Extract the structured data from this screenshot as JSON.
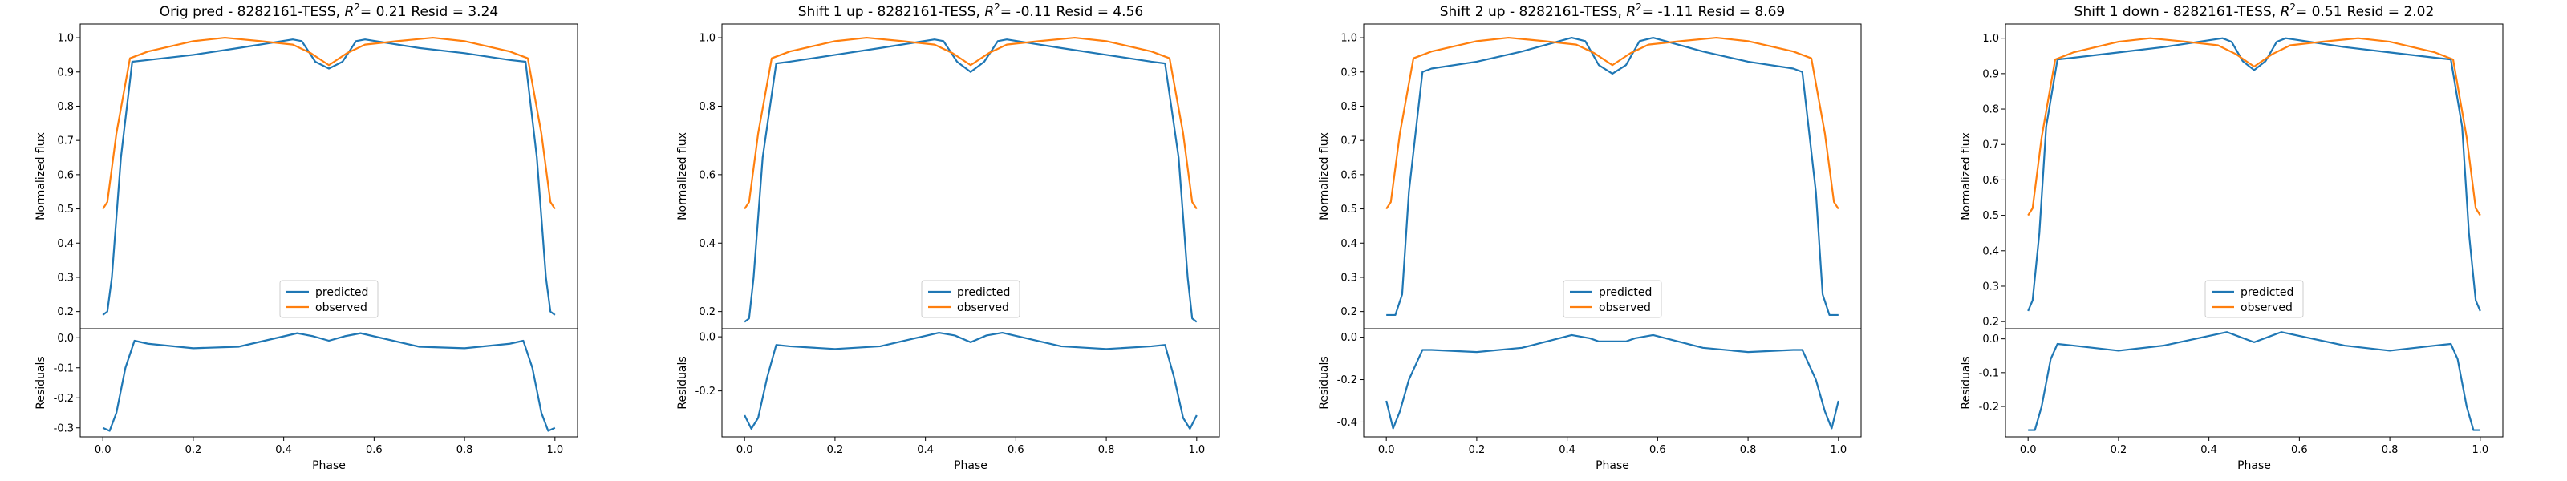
{
  "figure": {
    "colors": {
      "predicted": "#1f77b4",
      "observed": "#ff7f0e",
      "axes": "#000000",
      "background": "#ffffff"
    }
  },
  "chart_data": [
    {
      "type": "line",
      "title_prefix": "Orig pred - 8282161-TESS, ",
      "title_r2": "= 0.21",
      "title_resid": "Resid = 3.24",
      "ylabel": "Normalized flux",
      "ylabel_resid": "Residuals",
      "xlabel": "Phase",
      "xlim": [
        -0.05,
        1.05
      ],
      "ylim": [
        0.15,
        1.04
      ],
      "ylim_resid": [
        -0.33,
        0.03
      ],
      "yticks": [
        "0.2",
        "0.3",
        "0.4",
        "0.5",
        "0.6",
        "0.7",
        "0.8",
        "0.9",
        "1.0"
      ],
      "yticks_resid": [
        "-0.3",
        "-0.2",
        "-0.1",
        "0.0"
      ],
      "xticks": [
        "0.0",
        "0.2",
        "0.4",
        "0.6",
        "0.8",
        "1.0"
      ],
      "legend": {
        "location": "lower-center",
        "entries": [
          "predicted",
          "observed"
        ]
      },
      "series": [
        {
          "name": "predicted",
          "x": [
            0,
            0.01,
            0.02,
            0.04,
            0.065,
            0.1,
            0.2,
            0.3,
            0.42,
            0.44,
            0.47,
            0.5,
            0.53,
            0.56,
            0.58,
            0.7,
            0.8,
            0.9,
            0.935,
            0.96,
            0.98,
            0.99,
            1.0
          ],
          "y": [
            0.19,
            0.2,
            0.3,
            0.65,
            0.93,
            0.935,
            0.95,
            0.97,
            0.995,
            0.99,
            0.93,
            0.91,
            0.93,
            0.99,
            0.995,
            0.97,
            0.955,
            0.935,
            0.93,
            0.65,
            0.3,
            0.2,
            0.19
          ]
        },
        {
          "name": "observed",
          "x": [
            0,
            0.01,
            0.03,
            0.06,
            0.1,
            0.2,
            0.27,
            0.35,
            0.42,
            0.46,
            0.5,
            0.54,
            0.58,
            0.65,
            0.73,
            0.8,
            0.9,
            0.94,
            0.97,
            0.99,
            1.0
          ],
          "y": [
            0.5,
            0.52,
            0.72,
            0.94,
            0.96,
            0.99,
            1.0,
            0.99,
            0.98,
            0.955,
            0.92,
            0.955,
            0.98,
            0.99,
            1.0,
            0.99,
            0.96,
            0.94,
            0.72,
            0.52,
            0.5
          ]
        }
      ],
      "residuals": {
        "x": [
          0,
          0.015,
          0.03,
          0.05,
          0.07,
          0.1,
          0.2,
          0.3,
          0.43,
          0.465,
          0.5,
          0.535,
          0.57,
          0.7,
          0.8,
          0.9,
          0.93,
          0.95,
          0.97,
          0.985,
          1.0
        ],
        "y": [
          -0.3,
          -0.31,
          -0.25,
          -0.1,
          -0.01,
          -0.02,
          -0.035,
          -0.03,
          0.015,
          0.005,
          -0.01,
          0.005,
          0.015,
          -0.03,
          -0.035,
          -0.02,
          -0.01,
          -0.1,
          -0.25,
          -0.31,
          -0.3
        ]
      }
    },
    {
      "type": "line",
      "title_prefix": "Shift 1 up - 8282161-TESS, ",
      "title_r2": "= -0.11",
      "title_resid": "Resid = 4.56",
      "ylabel": "Normalized flux",
      "ylabel_resid": "Residuals",
      "xlabel": "Phase",
      "xlim": [
        -0.05,
        1.05
      ],
      "ylim": [
        0.15,
        1.04
      ],
      "ylim_resid": [
        -0.37,
        0.03
      ],
      "yticks": [
        "0.2",
        "0.4",
        "0.6",
        "0.8",
        "1.0"
      ],
      "yticks_resid": [
        "-0.2",
        "0.0"
      ],
      "xticks": [
        "0.0",
        "0.2",
        "0.4",
        "0.6",
        "0.8",
        "1.0"
      ],
      "legend": {
        "location": "lower-center",
        "entries": [
          "predicted",
          "observed"
        ]
      },
      "series": [
        {
          "name": "predicted",
          "x": [
            0,
            0.01,
            0.02,
            0.04,
            0.07,
            0.1,
            0.2,
            0.3,
            0.42,
            0.44,
            0.47,
            0.5,
            0.53,
            0.56,
            0.58,
            0.7,
            0.8,
            0.9,
            0.93,
            0.96,
            0.98,
            0.99,
            1.0
          ],
          "y": [
            0.17,
            0.18,
            0.3,
            0.65,
            0.925,
            0.93,
            0.95,
            0.97,
            0.995,
            0.99,
            0.93,
            0.9,
            0.93,
            0.99,
            0.995,
            0.97,
            0.95,
            0.93,
            0.925,
            0.65,
            0.3,
            0.18,
            0.17
          ]
        },
        {
          "name": "observed",
          "x": [
            0,
            0.01,
            0.03,
            0.06,
            0.1,
            0.2,
            0.27,
            0.35,
            0.42,
            0.46,
            0.5,
            0.54,
            0.58,
            0.65,
            0.73,
            0.8,
            0.9,
            0.94,
            0.97,
            0.99,
            1.0
          ],
          "y": [
            0.5,
            0.52,
            0.72,
            0.94,
            0.96,
            0.99,
            1.0,
            0.99,
            0.98,
            0.955,
            0.92,
            0.955,
            0.98,
            0.99,
            1.0,
            0.99,
            0.96,
            0.94,
            0.72,
            0.52,
            0.5
          ]
        }
      ],
      "residuals": {
        "x": [
          0,
          0.015,
          0.03,
          0.05,
          0.07,
          0.1,
          0.2,
          0.3,
          0.43,
          0.465,
          0.5,
          0.535,
          0.57,
          0.7,
          0.8,
          0.9,
          0.93,
          0.95,
          0.97,
          0.985,
          1.0
        ],
        "y": [
          -0.29,
          -0.34,
          -0.3,
          -0.15,
          -0.03,
          -0.035,
          -0.045,
          -0.035,
          0.015,
          0.005,
          -0.02,
          0.005,
          0.015,
          -0.035,
          -0.045,
          -0.035,
          -0.03,
          -0.15,
          -0.3,
          -0.34,
          -0.29
        ]
      }
    },
    {
      "type": "line",
      "title_prefix": "Shift 2 up - 8282161-TESS, ",
      "title_r2": "= -1.11",
      "title_resid": "Resid = 8.69",
      "ylabel": "Normalized flux",
      "ylabel_resid": "Residuals",
      "xlabel": "Phase",
      "xlim": [
        -0.05,
        1.05
      ],
      "ylim": [
        0.15,
        1.04
      ],
      "ylim_resid": [
        -0.47,
        0.04
      ],
      "yticks": [
        "0.2",
        "0.3",
        "0.4",
        "0.5",
        "0.6",
        "0.7",
        "0.8",
        "0.9",
        "1.0"
      ],
      "yticks_resid": [
        "-0.4",
        "-0.2",
        "0.0"
      ],
      "xticks": [
        "0.0",
        "0.2",
        "0.4",
        "0.6",
        "0.8",
        "1.0"
      ],
      "legend": {
        "location": "lower-center",
        "entries": [
          "predicted",
          "observed"
        ]
      },
      "series": [
        {
          "name": "predicted",
          "x": [
            0,
            0.02,
            0.035,
            0.05,
            0.08,
            0.1,
            0.2,
            0.3,
            0.41,
            0.44,
            0.47,
            0.5,
            0.53,
            0.56,
            0.59,
            0.7,
            0.8,
            0.9,
            0.92,
            0.95,
            0.965,
            0.98,
            1.0
          ],
          "y": [
            0.19,
            0.19,
            0.25,
            0.55,
            0.9,
            0.91,
            0.93,
            0.96,
            1.0,
            0.99,
            0.92,
            0.895,
            0.92,
            0.99,
            1.0,
            0.96,
            0.93,
            0.91,
            0.9,
            0.55,
            0.25,
            0.19,
            0.19
          ]
        },
        {
          "name": "observed",
          "x": [
            0,
            0.01,
            0.03,
            0.06,
            0.1,
            0.2,
            0.27,
            0.35,
            0.42,
            0.46,
            0.5,
            0.54,
            0.58,
            0.65,
            0.73,
            0.8,
            0.9,
            0.94,
            0.97,
            0.99,
            1.0
          ],
          "y": [
            0.5,
            0.52,
            0.72,
            0.94,
            0.96,
            0.99,
            1.0,
            0.99,
            0.98,
            0.955,
            0.92,
            0.955,
            0.98,
            0.99,
            1.0,
            0.99,
            0.96,
            0.94,
            0.72,
            0.52,
            0.5
          ]
        }
      ],
      "residuals": {
        "x": [
          0,
          0.015,
          0.03,
          0.05,
          0.08,
          0.1,
          0.2,
          0.3,
          0.41,
          0.45,
          0.47,
          0.5,
          0.53,
          0.55,
          0.59,
          0.7,
          0.8,
          0.9,
          0.92,
          0.95,
          0.97,
          0.985,
          1.0
        ],
        "y": [
          -0.3,
          -0.43,
          -0.35,
          -0.2,
          -0.06,
          -0.06,
          -0.07,
          -0.05,
          0.01,
          -0.005,
          -0.02,
          -0.02,
          -0.02,
          -0.005,
          0.01,
          -0.05,
          -0.07,
          -0.06,
          -0.06,
          -0.2,
          -0.35,
          -0.43,
          -0.3
        ]
      }
    },
    {
      "type": "line",
      "title_prefix": "Shift 1 down - 8282161-TESS, ",
      "title_r2": "= 0.51",
      "title_resid": "Resid = 2.02",
      "ylabel": "Normalized flux",
      "ylabel_resid": "Residuals",
      "xlabel": "Phase",
      "xlim": [
        -0.05,
        1.05
      ],
      "ylim": [
        0.18,
        1.04
      ],
      "ylim_resid": [
        -0.29,
        0.03
      ],
      "yticks": [
        "0.2",
        "0.3",
        "0.4",
        "0.5",
        "0.6",
        "0.7",
        "0.8",
        "0.9",
        "1.0"
      ],
      "yticks_resid": [
        "-0.2",
        "-0.1",
        "0.0"
      ],
      "xticks": [
        "0.0",
        "0.2",
        "0.4",
        "0.6",
        "0.8",
        "1.0"
      ],
      "legend": {
        "location": "lower-center",
        "entries": [
          "predicted",
          "observed"
        ]
      },
      "series": [
        {
          "name": "predicted",
          "x": [
            0,
            0.01,
            0.025,
            0.04,
            0.065,
            0.1,
            0.2,
            0.3,
            0.43,
            0.45,
            0.475,
            0.5,
            0.525,
            0.55,
            0.57,
            0.7,
            0.8,
            0.9,
            0.935,
            0.96,
            0.975,
            0.99,
            1.0
          ],
          "y": [
            0.23,
            0.26,
            0.45,
            0.75,
            0.94,
            0.945,
            0.96,
            0.975,
            1.0,
            0.99,
            0.935,
            0.91,
            0.935,
            0.99,
            1.0,
            0.975,
            0.96,
            0.945,
            0.94,
            0.75,
            0.45,
            0.26,
            0.23
          ]
        },
        {
          "name": "observed",
          "x": [
            0,
            0.01,
            0.03,
            0.06,
            0.1,
            0.2,
            0.27,
            0.35,
            0.42,
            0.46,
            0.5,
            0.54,
            0.58,
            0.65,
            0.73,
            0.8,
            0.9,
            0.94,
            0.97,
            0.99,
            1.0
          ],
          "y": [
            0.5,
            0.52,
            0.72,
            0.94,
            0.96,
            0.99,
            1.0,
            0.99,
            0.98,
            0.955,
            0.92,
            0.955,
            0.98,
            0.99,
            1.0,
            0.99,
            0.96,
            0.94,
            0.72,
            0.52,
            0.5
          ]
        }
      ],
      "residuals": {
        "x": [
          0,
          0.015,
          0.03,
          0.05,
          0.065,
          0.1,
          0.2,
          0.3,
          0.44,
          0.47,
          0.5,
          0.53,
          0.56,
          0.7,
          0.8,
          0.9,
          0.935,
          0.95,
          0.97,
          0.985,
          1.0
        ],
        "y": [
          -0.27,
          -0.27,
          -0.2,
          -0.06,
          -0.015,
          -0.02,
          -0.035,
          -0.02,
          0.02,
          0.005,
          -0.01,
          0.005,
          0.02,
          -0.02,
          -0.035,
          -0.02,
          -0.015,
          -0.06,
          -0.2,
          -0.27,
          -0.27
        ]
      }
    }
  ]
}
